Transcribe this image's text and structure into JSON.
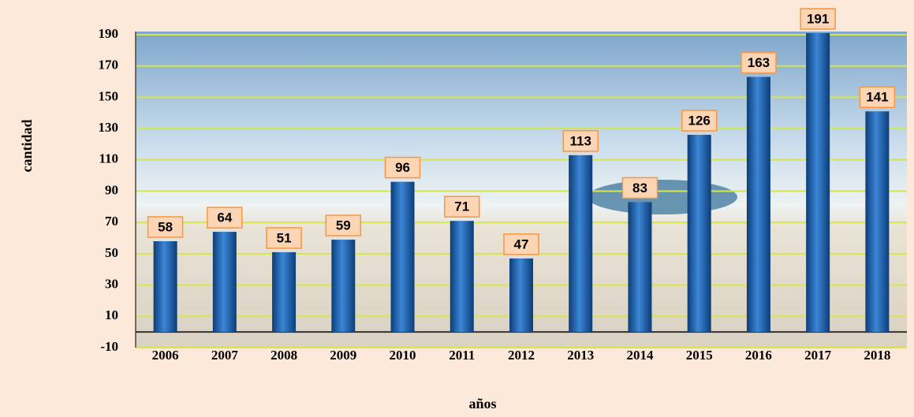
{
  "chart_data": {
    "type": "bar",
    "categories": [
      "2006",
      "2007",
      "2008",
      "2009",
      "2010",
      "2011",
      "2012",
      "2013",
      "2014",
      "2015",
      "2016",
      "2017",
      "2018"
    ],
    "values": [
      58,
      64,
      51,
      59,
      96,
      71,
      47,
      113,
      83,
      126,
      163,
      191,
      141
    ],
    "color": "#1f5fa8",
    "ylim": [
      -10,
      190
    ],
    "yticks": [
      -10,
      10,
      30,
      50,
      70,
      90,
      110,
      130,
      150,
      170,
      190
    ],
    "grid": true,
    "y_label": "cantidad",
    "x_label": "años"
  }
}
